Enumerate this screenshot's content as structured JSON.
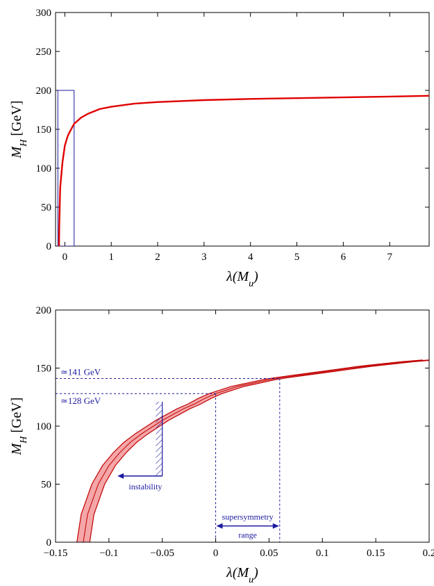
{
  "chart_data": [
    {
      "type": "line",
      "xlabel": "λ(M_u)",
      "ylabel": "M_H [GeV]",
      "xlim": [
        -0.2,
        7.85
      ],
      "ylim": [
        0,
        300
      ],
      "xticks": [
        0,
        1,
        2,
        3,
        4,
        5,
        6,
        7
      ],
      "yticks": [
        0,
        50,
        100,
        150,
        200,
        250,
        300
      ],
      "xtick_labels": [
        "0",
        "1",
        "2",
        "3",
        "4",
        "5",
        "6",
        "7"
      ],
      "ytick_labels": [
        "0",
        "50",
        "100",
        "150",
        "200",
        "250",
        "300"
      ],
      "grid": false,
      "series": [
        {
          "color": "#e00000",
          "x": [
            -0.125,
            -0.12,
            -0.1,
            -0.05,
            0,
            0.06,
            0.1,
            0.2,
            0.35,
            0.5,
            0.75,
            1,
            1.5,
            2,
            3,
            4,
            5,
            6,
            7,
            7.85
          ],
          "y": [
            0,
            25,
            75,
            108,
            129,
            141,
            146,
            157,
            165,
            170,
            176,
            179,
            183,
            185,
            187.5,
            189,
            190,
            191,
            192,
            193
          ]
        }
      ],
      "zoom_box": {
        "x": [
          -0.15,
          0.2
        ],
        "y": [
          0,
          200
        ],
        "color": "#1a1aa0"
      }
    },
    {
      "type": "line",
      "xlabel": "λ(M_u)",
      "ylabel": "M_H [GeV]",
      "xlim": [
        -0.15,
        0.2
      ],
      "ylim": [
        0,
        200
      ],
      "xticks": [
        -0.15,
        -0.1,
        -0.05,
        0,
        0.05,
        0.1,
        0.15,
        0.2
      ],
      "yticks": [
        0,
        50,
        100,
        150,
        200
      ],
      "xtick_labels": [
        "−0.15",
        "−0.1",
        "−0.05",
        "0",
        "0.05",
        "0.1",
        "0.15",
        "0.2"
      ],
      "ytick_labels": [
        "0",
        "50",
        "100",
        "150",
        "200"
      ],
      "grid": false,
      "band": {
        "fill": "#f4a6a8",
        "edge": "#c00000",
        "x": [
          -0.124,
          -0.12,
          -0.11,
          -0.1,
          -0.09,
          -0.08,
          -0.07,
          -0.06,
          -0.05,
          -0.04,
          -0.03,
          -0.02,
          -0.01,
          0,
          0.01,
          0.02,
          0.03,
          0.04,
          0.05,
          0.06,
          0.08,
          0.1,
          0.12,
          0.14,
          0.16,
          0.18,
          0.2
        ],
        "y": [
          0,
          24,
          50,
          66,
          77,
          86,
          93,
          99,
          105,
          110,
          115,
          119,
          124,
          128,
          131,
          134,
          136,
          138,
          140,
          141.5,
          144,
          146.5,
          149,
          151.5,
          153.5,
          155.5,
          157
        ],
        "half_width_x": 0.006
      },
      "annotations": [
        {
          "text": "≃141 GeV",
          "y": 141,
          "x_to": 0.06
        },
        {
          "text": "≃128 GeV",
          "y": 128,
          "x_to": 0
        },
        {
          "text": "instability",
          "x_from": -0.05,
          "x_to": -0.092,
          "y": 57,
          "hatch_x": [
            -0.056,
            -0.05
          ],
          "hatch_y": [
            57,
            121
          ]
        },
        {
          "text_lines": [
            "supersymmetry",
            "range"
          ],
          "x_from": 0,
          "x_to": 0.06,
          "y": 14
        }
      ]
    }
  ]
}
